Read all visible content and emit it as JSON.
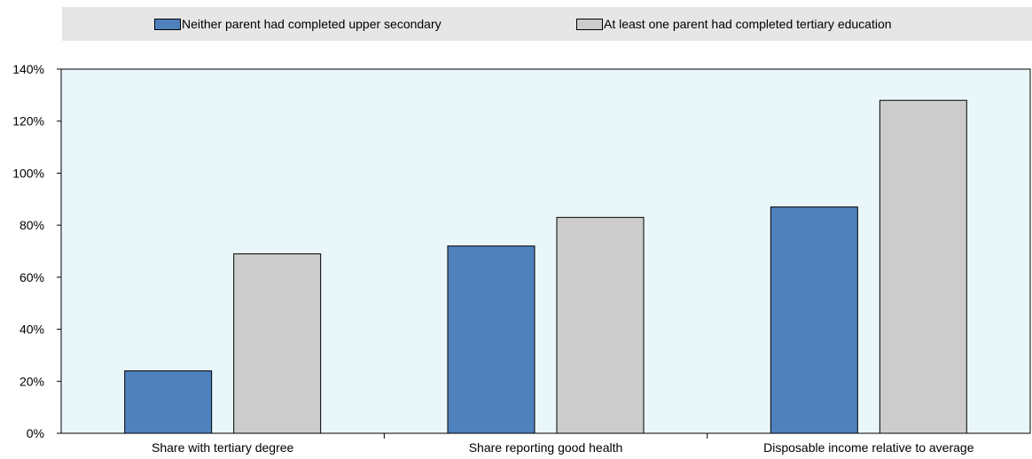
{
  "chart_data": {
    "type": "bar",
    "categories": [
      "Share with tertiary degree",
      "Share reporting good health",
      "Disposable income relative to average"
    ],
    "series": [
      {
        "name": "Neither parent had completed upper secondary",
        "values": [
          24,
          72,
          87
        ],
        "color": "#4f81bd"
      },
      {
        "name": "At least one parent had completed tertiary education",
        "values": [
          69,
          83,
          128
        ],
        "color": "#cccccc"
      }
    ],
    "ylim": [
      0,
      140
    ],
    "yticks": [
      0,
      20,
      40,
      60,
      80,
      100,
      120,
      140
    ],
    "ytick_labels": [
      "0%",
      "20%",
      "40%",
      "60%",
      "80%",
      "100%",
      "120%",
      "140%"
    ],
    "plot_background": "#eaf7fa",
    "grid": false,
    "legend_position": "top"
  }
}
